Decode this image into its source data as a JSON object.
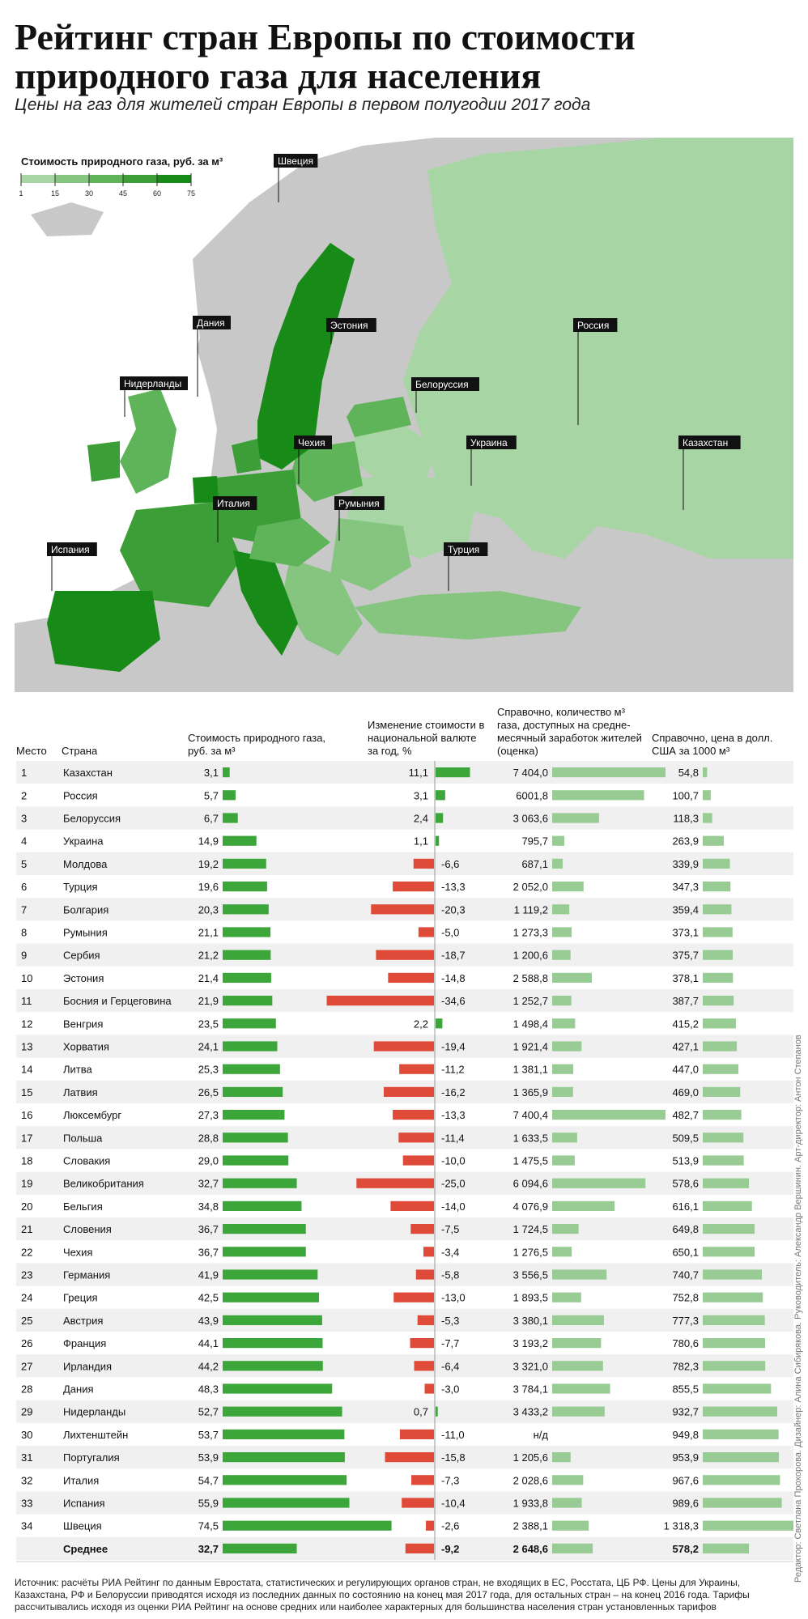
{
  "title": "Рейтинг стран Европы по стоимости природного газа для населения",
  "subtitle": "Цены на газ для жителей стран Европы в первом полугодии 2017 года",
  "legend": {
    "title": "Стоимость природного газа, руб. за м³",
    "ticks": [
      "1",
      "15",
      "30",
      "45",
      "60",
      "75"
    ],
    "colors": [
      "#a8d5a4",
      "#85c57f",
      "#5fb45a",
      "#3c9e37",
      "#188a18"
    ]
  },
  "map_labels": [
    "Швеция",
    "Дания",
    "Нидерланды",
    "Эстония",
    "Россия",
    "Белоруссия",
    "Чехия",
    "Украина",
    "Казахстан",
    "Италия",
    "Румыния",
    "Испания",
    "Турция"
  ],
  "columns": {
    "place": "Место",
    "country": "Страна",
    "price": "Стоимость природного газа, руб. за м³",
    "change": "Изменение стоимости в национальной валюте за год, %",
    "volume": "Справочно, количество м³ газа, доступных на средне-месячный заработок жителей (оценка)",
    "usd": "Справочно, цена в долл. США за 1000 м³"
  },
  "colors": {
    "price_bar": "#3da63a",
    "change_pos": "#3da63a",
    "change_neg": "#e04a38",
    "volume_bar": "#98cc94",
    "usd_bar": "#98cc94",
    "row_stripe": "#f0f0f0",
    "axis": "#999999"
  },
  "chart_data": {
    "type": "table",
    "rows": [
      {
        "place": "1",
        "country": "Казахстан",
        "price": 3.1,
        "price_label": "3,1",
        "change": 11.1,
        "change_label": "11,1",
        "volume": 7404.0,
        "volume_label": "7 404,0",
        "usd": 54.8,
        "usd_label": "54,8"
      },
      {
        "place": "2",
        "country": "Россия",
        "price": 5.7,
        "price_label": "5,7",
        "change": 3.1,
        "change_label": "3,1",
        "volume": 6001.8,
        "volume_label": "6001,8",
        "usd": 100.7,
        "usd_label": "100,7"
      },
      {
        "place": "3",
        "country": "Белоруссия",
        "price": 6.7,
        "price_label": "6,7",
        "change": 2.4,
        "change_label": "2,4",
        "volume": 3063.6,
        "volume_label": "3 063,6",
        "usd": 118.3,
        "usd_label": "118,3"
      },
      {
        "place": "4",
        "country": "Украина",
        "price": 14.9,
        "price_label": "14,9",
        "change": 1.1,
        "change_label": "1,1",
        "volume": 795.7,
        "volume_label": "795,7",
        "usd": 263.9,
        "usd_label": "263,9"
      },
      {
        "place": "5",
        "country": "Молдова",
        "price": 19.2,
        "price_label": "19,2",
        "change": -6.6,
        "change_label": "-6,6",
        "volume": 687.1,
        "volume_label": "687,1",
        "usd": 339.9,
        "usd_label": "339,9"
      },
      {
        "place": "6",
        "country": "Турция",
        "price": 19.6,
        "price_label": "19,6",
        "change": -13.3,
        "change_label": "-13,3",
        "volume": 2052.0,
        "volume_label": "2 052,0",
        "usd": 347.3,
        "usd_label": "347,3"
      },
      {
        "place": "7",
        "country": "Болгария",
        "price": 20.3,
        "price_label": "20,3",
        "change": -20.3,
        "change_label": "-20,3",
        "volume": 1119.2,
        "volume_label": "1 119,2",
        "usd": 359.4,
        "usd_label": "359,4"
      },
      {
        "place": "8",
        "country": "Румыния",
        "price": 21.1,
        "price_label": "21,1",
        "change": -5.0,
        "change_label": "-5,0",
        "volume": 1273.3,
        "volume_label": "1 273,3",
        "usd": 373.1,
        "usd_label": "373,1"
      },
      {
        "place": "9",
        "country": "Сербия",
        "price": 21.2,
        "price_label": "21,2",
        "change": -18.7,
        "change_label": "-18,7",
        "volume": 1200.6,
        "volume_label": "1 200,6",
        "usd": 375.7,
        "usd_label": "375,7"
      },
      {
        "place": "10",
        "country": "Эстония",
        "price": 21.4,
        "price_label": "21,4",
        "change": -14.8,
        "change_label": "-14,8",
        "volume": 2588.8,
        "volume_label": "2 588,8",
        "usd": 378.1,
        "usd_label": "378,1"
      },
      {
        "place": "11",
        "country": "Босния и Герцеговина",
        "price": 21.9,
        "price_label": "21,9",
        "change": -34.6,
        "change_label": "-34,6",
        "volume": 1252.7,
        "volume_label": "1 252,7",
        "usd": 387.7,
        "usd_label": "387,7"
      },
      {
        "place": "12",
        "country": "Венгрия",
        "price": 23.5,
        "price_label": "23,5",
        "change": 2.2,
        "change_label": "2,2",
        "volume": 1498.4,
        "volume_label": "1 498,4",
        "usd": 415.2,
        "usd_label": "415,2"
      },
      {
        "place": "13",
        "country": "Хорватия",
        "price": 24.1,
        "price_label": "24,1",
        "change": -19.4,
        "change_label": "-19,4",
        "volume": 1921.4,
        "volume_label": "1 921,4",
        "usd": 427.1,
        "usd_label": "427,1"
      },
      {
        "place": "14",
        "country": "Литва",
        "price": 25.3,
        "price_label": "25,3",
        "change": -11.2,
        "change_label": "-11,2",
        "volume": 1381.1,
        "volume_label": "1 381,1",
        "usd": 447.0,
        "usd_label": "447,0"
      },
      {
        "place": "15",
        "country": "Латвия",
        "price": 26.5,
        "price_label": "26,5",
        "change": -16.2,
        "change_label": "-16,2",
        "volume": 1365.9,
        "volume_label": "1 365,9",
        "usd": 469.0,
        "usd_label": "469,0"
      },
      {
        "place": "16",
        "country": "Люксембург",
        "price": 27.3,
        "price_label": "27,3",
        "change": -13.3,
        "change_label": "-13,3",
        "volume": 7400.4,
        "volume_label": "7 400,4",
        "usd": 482.7,
        "usd_label": "482,7"
      },
      {
        "place": "17",
        "country": "Польша",
        "price": 28.8,
        "price_label": "28,8",
        "change": -11.4,
        "change_label": "-11,4",
        "volume": 1633.5,
        "volume_label": "1 633,5",
        "usd": 509.5,
        "usd_label": "509,5"
      },
      {
        "place": "18",
        "country": "Словакия",
        "price": 29.0,
        "price_label": "29,0",
        "change": -10.0,
        "change_label": "-10,0",
        "volume": 1475.5,
        "volume_label": "1 475,5",
        "usd": 513.9,
        "usd_label": "513,9"
      },
      {
        "place": "19",
        "country": "Великобритания",
        "price": 32.7,
        "price_label": "32,7",
        "change": -25.0,
        "change_label": "-25,0",
        "volume": 6094.6,
        "volume_label": "6 094,6",
        "usd": 578.6,
        "usd_label": "578,6"
      },
      {
        "place": "20",
        "country": "Бельгия",
        "price": 34.8,
        "price_label": "34,8",
        "change": -14.0,
        "change_label": "-14,0",
        "volume": 4076.9,
        "volume_label": "4 076,9",
        "usd": 616.1,
        "usd_label": "616,1"
      },
      {
        "place": "21",
        "country": "Словения",
        "price": 36.7,
        "price_label": "36,7",
        "change": -7.5,
        "change_label": "-7,5",
        "volume": 1724.5,
        "volume_label": "1 724,5",
        "usd": 649.8,
        "usd_label": "649,8"
      },
      {
        "place": "22",
        "country": "Чехия",
        "price": 36.7,
        "price_label": "36,7",
        "change": -3.4,
        "change_label": "-3,4",
        "volume": 1276.5,
        "volume_label": "1 276,5",
        "usd": 650.1,
        "usd_label": "650,1"
      },
      {
        "place": "23",
        "country": "Германия",
        "price": 41.9,
        "price_label": "41,9",
        "change": -5.8,
        "change_label": "-5,8",
        "volume": 3556.5,
        "volume_label": "3 556,5",
        "usd": 740.7,
        "usd_label": "740,7"
      },
      {
        "place": "24",
        "country": "Греция",
        "price": 42.5,
        "price_label": "42,5",
        "change": -13.0,
        "change_label": "-13,0",
        "volume": 1893.5,
        "volume_label": "1 893,5",
        "usd": 752.8,
        "usd_label": "752,8"
      },
      {
        "place": "25",
        "country": "Австрия",
        "price": 43.9,
        "price_label": "43,9",
        "change": -5.3,
        "change_label": "-5,3",
        "volume": 3380.1,
        "volume_label": "3 380,1",
        "usd": 777.3,
        "usd_label": "777,3"
      },
      {
        "place": "26",
        "country": "Франция",
        "price": 44.1,
        "price_label": "44,1",
        "change": -7.7,
        "change_label": "-7,7",
        "volume": 3193.2,
        "volume_label": "3 193,2",
        "usd": 780.6,
        "usd_label": "780,6"
      },
      {
        "place": "27",
        "country": "Ирландия",
        "price": 44.2,
        "price_label": "44,2",
        "change": -6.4,
        "change_label": "-6,4",
        "volume": 3321.0,
        "volume_label": "3 321,0",
        "usd": 782.3,
        "usd_label": "782,3"
      },
      {
        "place": "28",
        "country": "Дания",
        "price": 48.3,
        "price_label": "48,3",
        "change": -3.0,
        "change_label": "-3,0",
        "volume": 3784.1,
        "volume_label": "3 784,1",
        "usd": 855.5,
        "usd_label": "855,5"
      },
      {
        "place": "29",
        "country": "Нидерланды",
        "price": 52.7,
        "price_label": "52,7",
        "change": 0.7,
        "change_label": "0,7",
        "volume": 3433.2,
        "volume_label": "3 433,2",
        "usd": 932.7,
        "usd_label": "932,7"
      },
      {
        "place": "30",
        "country": "Лихтенштейн",
        "price": 53.7,
        "price_label": "53,7",
        "change": -11.0,
        "change_label": "-11,0",
        "volume": null,
        "volume_label": "н/д",
        "usd": 949.8,
        "usd_label": "949,8"
      },
      {
        "place": "31",
        "country": "Португалия",
        "price": 53.9,
        "price_label": "53,9",
        "change": -15.8,
        "change_label": "-15,8",
        "volume": 1205.6,
        "volume_label": "1 205,6",
        "usd": 953.9,
        "usd_label": "953,9"
      },
      {
        "place": "32",
        "country": "Италия",
        "price": 54.7,
        "price_label": "54,7",
        "change": -7.3,
        "change_label": "-7,3",
        "volume": 2028.6,
        "volume_label": "2 028,6",
        "usd": 967.6,
        "usd_label": "967,6"
      },
      {
        "place": "33",
        "country": "Испания",
        "price": 55.9,
        "price_label": "55,9",
        "change": -10.4,
        "change_label": "-10,4",
        "volume": 1933.8,
        "volume_label": "1 933,8",
        "usd": 989.6,
        "usd_label": "989,6"
      },
      {
        "place": "34",
        "country": "Швеция",
        "price": 74.5,
        "price_label": "74,5",
        "change": -2.6,
        "change_label": "-2,6",
        "volume": 2388.1,
        "volume_label": "2 388,1",
        "usd": 1318.3,
        "usd_label": "1 318,3"
      }
    ],
    "average": {
      "country": "Среднее",
      "price": 32.7,
      "price_label": "32,7",
      "change": -9.2,
      "change_label": "-9,2",
      "volume": 2648.6,
      "volume_label": "2 648,6",
      "usd": 578.2,
      "usd_label": "578,2"
    },
    "scales": {
      "price_max": 75,
      "change_min": -35,
      "change_max": 11.1,
      "volume_max": 7404,
      "usd_max": 1318.3
    }
  },
  "source": "Источник: расчёты РИА Рейтинг по данным Евростата, статистических и регулирующих органов стран, не входящих в ЕС, Росстата, ЦБ РФ. Цены для Украины, Казахстана, РФ и Белоруссии приводятся исходя из последних данных по состоянию на конец мая 2017 года, для остальных стран – на конец 2016 года. Тарифы рассчитывались исходя из оценки РИА Рейтинг на основе средних или наиболее характерных для большинства населения стран установленных тарифов",
  "credits": "Редактор: Светлана Прохорова. Дизайнер: Алина Сибирякова. Руководитель: Александр Верш­инин. Арт-директор: Антон Степанов"
}
